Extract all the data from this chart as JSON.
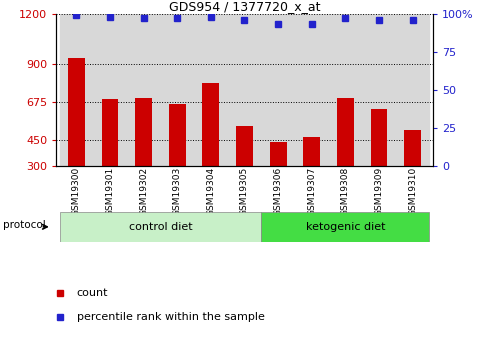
{
  "title": "GDS954 / 1377720_x_at",
  "samples": [
    "GSM19300",
    "GSM19301",
    "GSM19302",
    "GSM19303",
    "GSM19304",
    "GSM19305",
    "GSM19306",
    "GSM19307",
    "GSM19308",
    "GSM19309",
    "GSM19310"
  ],
  "counts": [
    940,
    695,
    700,
    668,
    790,
    535,
    440,
    468,
    700,
    638,
    510
  ],
  "percentile_ranks": [
    99,
    98,
    97,
    97,
    98,
    96,
    93,
    93,
    97,
    96,
    96
  ],
  "ylim_left": [
    300,
    1200
  ],
  "ylim_right": [
    0,
    100
  ],
  "yticks_left": [
    300,
    450,
    675,
    900,
    1200
  ],
  "yticks_right": [
    0,
    25,
    50,
    75,
    100
  ],
  "bar_color": "#cc0000",
  "dot_color": "#2222cc",
  "bg_color": "#d8d8d8",
  "control_diet_indices": [
    0,
    1,
    2,
    3,
    4,
    5
  ],
  "ketogenic_diet_indices": [
    6,
    7,
    8,
    9,
    10
  ],
  "control_label": "control diet",
  "ketogenic_label": "ketogenic diet",
  "protocol_label": "protocol",
  "control_color": "#c8f0c8",
  "ketogenic_color": "#44dd44",
  "legend_count": "count",
  "legend_percentile": "percentile rank within the sample"
}
